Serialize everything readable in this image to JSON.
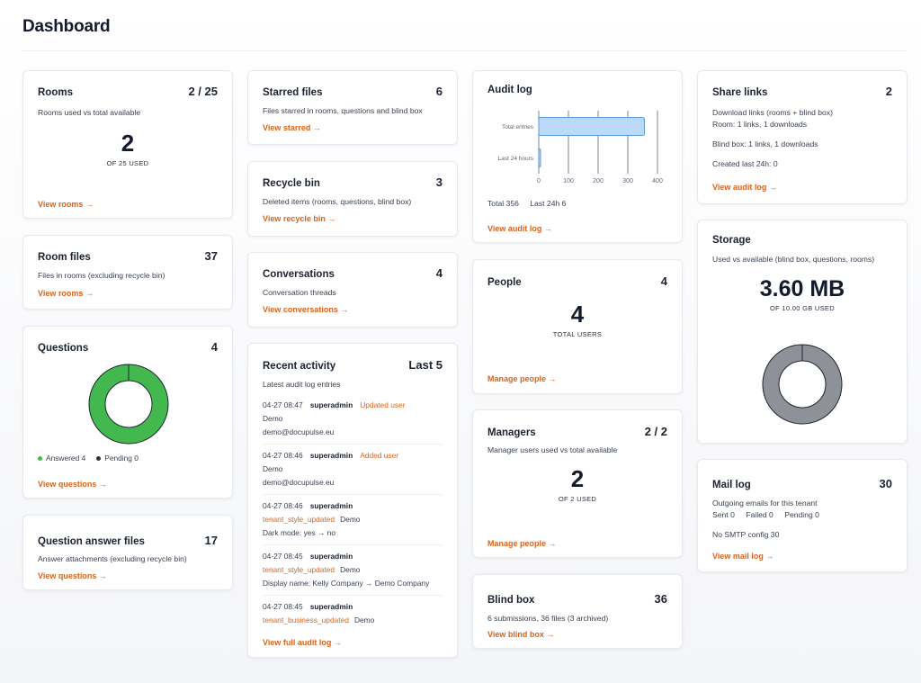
{
  "page": {
    "title": "Dashboard"
  },
  "rooms": {
    "title": "Rooms",
    "count": "2 / 25",
    "desc": "Rooms used vs total available",
    "big": "2",
    "caption": "OF 25 USED",
    "link": "View rooms →"
  },
  "room_files": {
    "title": "Room files",
    "count": "37",
    "desc": "Files in rooms (excluding recycle bin)",
    "link": "View rooms →"
  },
  "questions": {
    "title": "Questions",
    "count": "4",
    "legend": [
      {
        "label": "Answered 4",
        "color": "#43b84f"
      },
      {
        "label": "Pending 0",
        "color": "#2b3340"
      }
    ],
    "answered": 4,
    "pending": 0,
    "link": "View questions →"
  },
  "qa_files": {
    "title": "Question answer files",
    "count": "17",
    "desc": "Answer attachments (excluding recycle bin)",
    "link": "View questions →"
  },
  "starred": {
    "title": "Starred files",
    "count": "6",
    "desc": "Files starred in rooms, questions and blind box",
    "link": "View starred →"
  },
  "recycle": {
    "title": "Recycle bin",
    "count": "3",
    "desc": "Deleted items (rooms, questions, blind box)",
    "link": "View recycle bin →"
  },
  "conversations": {
    "title": "Conversations",
    "count": "4",
    "desc": "Conversation threads",
    "link": "View conversations →"
  },
  "recent": {
    "title": "Recent activity",
    "count": "Last 5",
    "desc": "Latest audit log entries",
    "entries": [
      {
        "time": "04-27 08:47",
        "user": "superadmin",
        "action": "Updated user",
        "target": "Demo",
        "detail": "demo@docupulse.eu"
      },
      {
        "time": "04-27 08:46",
        "user": "superadmin",
        "action": "Added user",
        "target": "Demo",
        "detail": "demo@docupulse.eu"
      },
      {
        "time": "04-27 08:46",
        "user": "superadmin",
        "action": "tenant_style_updated",
        "target": "Demo",
        "detail": "Dark mode: yes → no"
      },
      {
        "time": "04-27 08:45",
        "user": "superadmin",
        "action": "tenant_style_updated",
        "target": "Demo",
        "detail": "Display name: Kelly Company → Demo Company"
      },
      {
        "time": "04-27 08:45",
        "user": "superadmin",
        "action": "tenant_business_updated",
        "target": "Demo",
        "detail": ""
      }
    ],
    "link": "View full audit log →"
  },
  "audit": {
    "title": "Audit log",
    "summary": {
      "total": "Total 356",
      "last": "Last 24h 6"
    },
    "link": "View audit log →"
  },
  "chart_data": {
    "type": "bar",
    "orientation": "horizontal",
    "categories": [
      "Total entries",
      "Last 24 hours"
    ],
    "values": [
      356,
      6
    ],
    "xlim": [
      0,
      400
    ],
    "xticks": [
      "0",
      "100",
      "200",
      "300",
      "400"
    ],
    "grid": true,
    "colors": {
      "fill": "#bcd9f7",
      "stroke": "#5a9bd9",
      "grid": "#5e6572"
    }
  },
  "people": {
    "title": "People",
    "count": "4",
    "big": "4",
    "caption": "TOTAL USERS",
    "link": "Manage people →"
  },
  "managers": {
    "title": "Managers",
    "count": "2 / 2",
    "desc": "Manager users used vs total available",
    "big": "2",
    "caption": "OF 2 USED",
    "link": "Manage people →"
  },
  "blind": {
    "title": "Blind box",
    "count": "36",
    "desc": "6 submissions, 36 files (3 archived)",
    "link": "View blind box →"
  },
  "share": {
    "title": "Share links",
    "count": "2",
    "desc1": "Download links (rooms + blind box)",
    "desc2": "Room: 1 links, 1 downloads",
    "desc3": "Blind box: 1 links, 1 downloads",
    "desc4": "Created last 24h: 0",
    "link": "View audit log →"
  },
  "storage": {
    "title": "Storage",
    "desc": "Used vs available (blind box, questions, rooms)",
    "big": "3.60 MB",
    "caption": "OF 10.00 GB USED",
    "used_fraction": 0.00035,
    "ring_color": "#8e9198"
  },
  "mail": {
    "title": "Mail log",
    "count": "30",
    "desc": "Outgoing emails for this tenant",
    "stats": [
      "Sent 0",
      "Failed 0",
      "Pending 0"
    ],
    "smtp": "No SMTP config 30",
    "link": "View mail log →"
  },
  "colors": {
    "accent": "#d9631b",
    "text": "#1b2232",
    "green": "#43b84f"
  }
}
